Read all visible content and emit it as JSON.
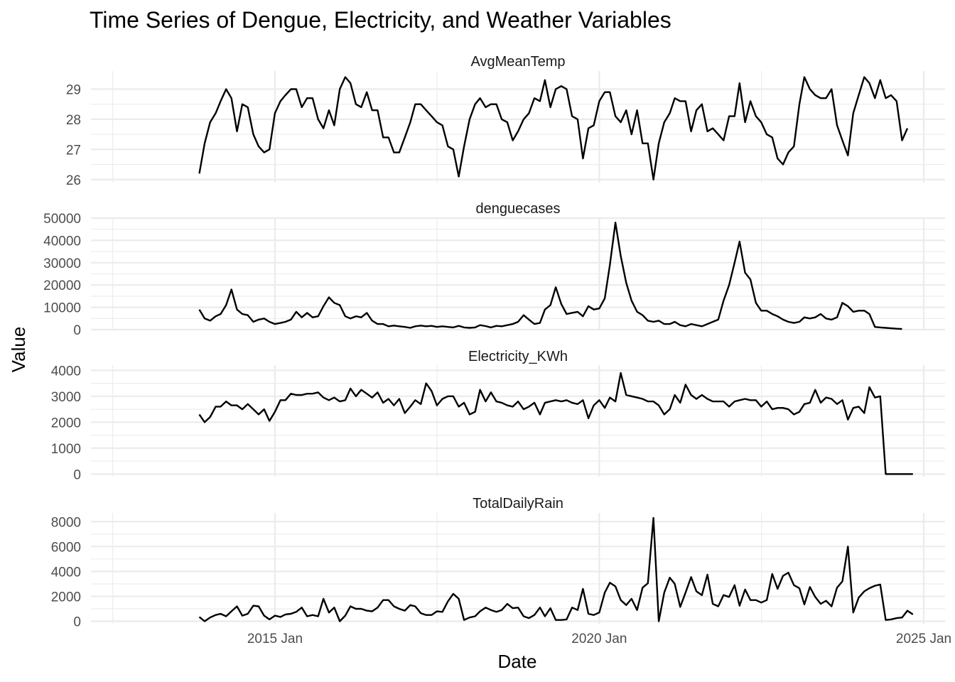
{
  "chart_data": {
    "type": "line",
    "title": "Time Series of Dengue, Electricity, and Weather Variables",
    "xlabel": "Date",
    "ylabel": "Value",
    "x_ticks": [
      {
        "date": "2015-01-01",
        "label": "2015 Jan"
      },
      {
        "date": "2020-01-01",
        "label": "2020 Jan"
      },
      {
        "date": "2025-01-01",
        "label": "2025 Jan"
      }
    ],
    "x_range": [
      "2012-03-01",
      "2025-05-01"
    ],
    "start": "2013-11-01",
    "end": "2024-12-01",
    "frequency": "monthly",
    "grid": true,
    "panels": [
      {
        "name": "AvgMeanTemp",
        "ylim": [
          25.9,
          29.6
        ],
        "yticks": [
          26,
          27,
          28,
          29
        ],
        "y_tick_labels": [
          "26",
          "27",
          "28",
          "29"
        ],
        "values": [
          26.2,
          27.2,
          27.9,
          28.2,
          28.6,
          29.0,
          28.7,
          27.6,
          28.5,
          28.4,
          27.5,
          27.1,
          26.9,
          27.0,
          28.2,
          28.6,
          28.8,
          29.0,
          29.0,
          28.4,
          28.7,
          28.7,
          28.0,
          27.7,
          28.3,
          27.8,
          29.0,
          29.4,
          29.2,
          28.5,
          28.4,
          28.9,
          28.3,
          28.3,
          27.4,
          27.4,
          26.9,
          26.9,
          27.4,
          27.9,
          28.5,
          28.5,
          28.3,
          28.1,
          27.9,
          27.8,
          27.1,
          27.0,
          26.1,
          27.1,
          28.0,
          28.5,
          28.7,
          28.4,
          28.5,
          28.5,
          28.0,
          27.9,
          27.3,
          27.6,
          28.0,
          28.2,
          28.7,
          28.6,
          29.3,
          28.4,
          29.0,
          29.1,
          29.0,
          28.1,
          28.0,
          26.7,
          27.7,
          27.8,
          28.6,
          28.9,
          28.9,
          28.1,
          27.9,
          28.3,
          27.5,
          28.3,
          27.2,
          27.2,
          26.0,
          27.2,
          27.9,
          28.2,
          28.7,
          28.6,
          28.6,
          27.6,
          28.3,
          28.5,
          27.6,
          27.7,
          27.5,
          27.3,
          28.1,
          28.1,
          29.2,
          27.9,
          28.6,
          28.1,
          27.9,
          27.5,
          27.4,
          26.7,
          26.5,
          26.9,
          27.1,
          28.5,
          29.4,
          29.0,
          28.8,
          28.7,
          28.7,
          29.0,
          27.8,
          27.3,
          26.8,
          28.2,
          28.8,
          29.4,
          29.2,
          28.7,
          29.3,
          28.7,
          28.8,
          28.6,
          27.3,
          27.7
        ]
      },
      {
        "name": "denguecases",
        "ylim": [
          0,
          50000
        ],
        "yticks": [
          0,
          10000,
          20000,
          30000,
          40000,
          50000
        ],
        "y_tick_labels": [
          "0",
          "10000",
          "20000",
          "30000",
          "40000",
          "50000"
        ],
        "values": [
          9000,
          5000,
          4000,
          6000,
          7000,
          11000,
          18000,
          9000,
          7000,
          6500,
          3500,
          4500,
          5000,
          3500,
          2500,
          3000,
          3500,
          4500,
          8000,
          5500,
          7500,
          5500,
          6000,
          10500,
          14500,
          12000,
          11000,
          6000,
          5000,
          6000,
          5500,
          7500,
          4000,
          2500,
          2500,
          1500,
          1800,
          1500,
          1200,
          800,
          1500,
          1800,
          1500,
          1700,
          1200,
          1500,
          1200,
          1000,
          1700,
          1000,
          800,
          1000,
          2000,
          1600,
          1000,
          1700,
          1500,
          2000,
          2500,
          3500,
          6500,
          4500,
          2500,
          3000,
          9000,
          11000,
          19000,
          11500,
          7000,
          7500,
          8000,
          6000,
          10500,
          9000,
          9500,
          14000,
          29000,
          48000,
          33000,
          21000,
          13000,
          8000,
          6500,
          4000,
          3500,
          4000,
          2500,
          2500,
          3500,
          2000,
          1500,
          2500,
          2000,
          1500,
          2500,
          3500,
          4500,
          13000,
          20000,
          30000,
          39500,
          25500,
          22500,
          12000,
          8500,
          8500,
          7000,
          6000,
          4500,
          3500,
          3000,
          3500,
          5500,
          5000,
          5500,
          7000,
          5000,
          4500,
          5500,
          12000,
          10500,
          8000,
          8500,
          8500,
          7000,
          1200,
          1000,
          800,
          600,
          400,
          300
        ]
      },
      {
        "name": "Electricity_KWh",
        "ylim": [
          -100,
          4200
        ],
        "yticks": [
          0,
          1000,
          2000,
          3000,
          4000
        ],
        "y_tick_labels": [
          "0",
          "1000",
          "2000",
          "3000",
          "4000"
        ],
        "values": [
          2300,
          2000,
          2200,
          2600,
          2600,
          2800,
          2650,
          2650,
          2500,
          2700,
          2500,
          2300,
          2500,
          2050,
          2400,
          2850,
          2850,
          3100,
          3050,
          3050,
          3100,
          3100,
          3150,
          2950,
          2850,
          2950,
          2800,
          2850,
          3300,
          3000,
          3250,
          3100,
          2950,
          3150,
          2750,
          2900,
          2650,
          2900,
          2350,
          2600,
          2850,
          2700,
          3500,
          3200,
          2650,
          2900,
          3000,
          3000,
          2600,
          2750,
          2300,
          2400,
          3250,
          2800,
          3150,
          2800,
          2750,
          2650,
          2600,
          2800,
          2500,
          2600,
          2750,
          2300,
          2750,
          2800,
          2850,
          2800,
          2850,
          2750,
          2700,
          2850,
          2150,
          2650,
          2850,
          2550,
          2950,
          2800,
          3900,
          3050,
          3000,
          2950,
          2900,
          2800,
          2800,
          2650,
          2300,
          2500,
          3050,
          2750,
          3450,
          3050,
          2900,
          3050,
          2900,
          2800,
          2800,
          2800,
          2600,
          2800,
          2850,
          2900,
          2850,
          2850,
          2600,
          2800,
          2500,
          2550,
          2550,
          2500,
          2300,
          2400,
          2700,
          2750,
          3250,
          2750,
          2950,
          2900,
          2700,
          2850,
          2100,
          2550,
          2600,
          2350,
          3350,
          2950,
          3000,
          0,
          0,
          0,
          0,
          0,
          0
        ]
      },
      {
        "name": "TotalDailyRain",
        "ylim": [
          -200,
          8700
        ],
        "yticks": [
          0,
          2000,
          4000,
          6000,
          8000
        ],
        "y_tick_labels": [
          "0",
          "2000",
          "4000",
          "6000",
          "8000"
        ],
        "values": [
          350,
          0,
          300,
          500,
          600,
          400,
          800,
          1200,
          450,
          600,
          1250,
          1200,
          450,
          150,
          450,
          350,
          550,
          600,
          750,
          1100,
          400,
          500,
          400,
          1800,
          700,
          1100,
          0,
          450,
          1200,
          1000,
          1000,
          850,
          800,
          1100,
          1700,
          1700,
          1200,
          1000,
          850,
          1300,
          1200,
          650,
          500,
          500,
          800,
          750,
          1600,
          2200,
          1800,
          100,
          300,
          400,
          800,
          1100,
          900,
          750,
          900,
          1400,
          1050,
          1100,
          400,
          250,
          500,
          1100,
          400,
          1050,
          100,
          100,
          150,
          1100,
          900,
          2600,
          600,
          500,
          700,
          2300,
          3100,
          2800,
          1700,
          1300,
          1800,
          900,
          2700,
          3050,
          8300,
          0,
          2300,
          3500,
          3000,
          1150,
          2300,
          3550,
          2400,
          2100,
          3750,
          1400,
          1200,
          2100,
          1950,
          2900,
          1250,
          2550,
          1700,
          1700,
          1500,
          1700,
          3800,
          2600,
          3650,
          3900,
          2900,
          2650,
          1350,
          2750,
          1950,
          1400,
          1650,
          1200,
          2700,
          3200,
          6000,
          700,
          1900,
          2400,
          2650,
          2850,
          2950,
          100,
          150,
          250,
          300,
          850,
          550
        ]
      }
    ]
  }
}
